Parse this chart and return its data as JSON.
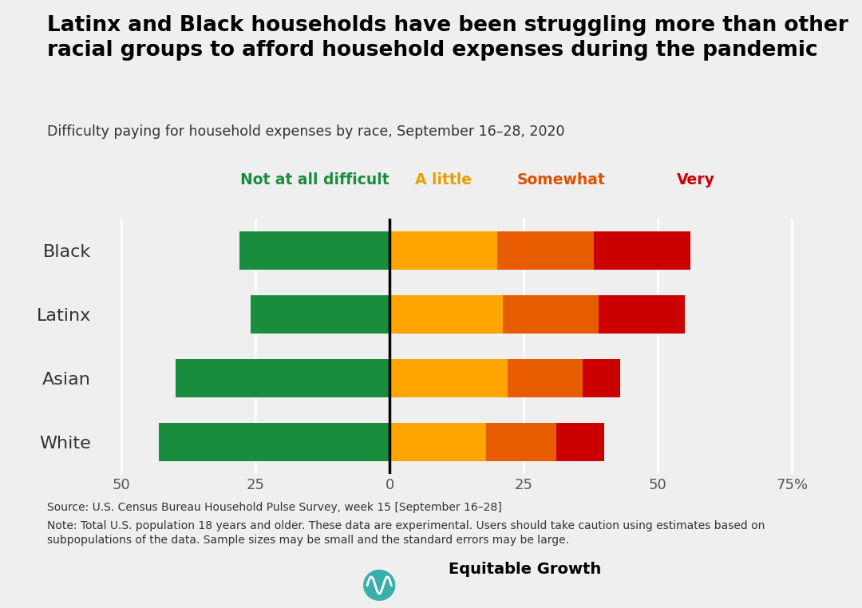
{
  "title": "Latinx and Black households have been struggling more than other\nracial groups to afford household expenses during the pandemic",
  "subtitle": "Difficulty paying for household expenses by race, September 16–28, 2020",
  "categories": [
    "Black",
    "Latinx",
    "Asian",
    "White"
  ],
  "not_difficult": [
    28,
    26,
    40,
    43
  ],
  "a_little": [
    20,
    21,
    22,
    18
  ],
  "somewhat": [
    18,
    18,
    14,
    13
  ],
  "very": [
    18,
    16,
    7,
    9
  ],
  "colors": {
    "not_difficult": "#1a8c3e",
    "a_little": "#ffa500",
    "somewhat": "#e85c00",
    "very": "#cc0000"
  },
  "legend_labels": [
    "Not at all difficult",
    "A little",
    "Somewhat",
    "Very"
  ],
  "legend_text_colors": [
    "#1a8c3e",
    "#e8a000",
    "#e05000",
    "#cc0000"
  ],
  "xlim": [
    -55,
    80
  ],
  "xticks": [
    -50,
    -25,
    0,
    25,
    50,
    75
  ],
  "xticklabels": [
    "50",
    "25",
    "0",
    "25",
    "50",
    "75%"
  ],
  "background_color": "#efefef",
  "source_text": "Source: U.S. Census Bureau Household Pulse Survey, week 15 [September 16–28]",
  "note_text": "Note: Total U.S. population 18 years and older. These data are experimental. Users should take caution using estimates based on\nsubpopulations of the data. Sample sizes may be small and the standard errors may be large."
}
